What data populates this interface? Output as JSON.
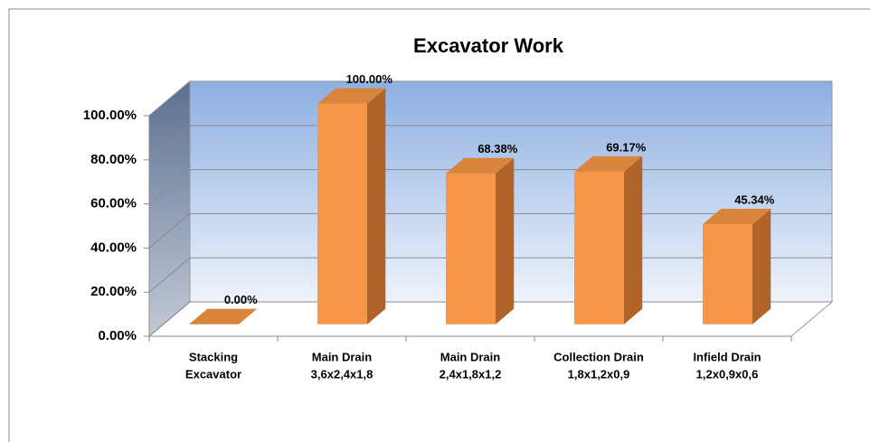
{
  "chart_data": {
    "type": "bar3d",
    "title": "Excavator Work",
    "categories": [
      [
        "Stacking",
        "Excavator"
      ],
      [
        "Main Drain",
        "3,6x2,4x1,8"
      ],
      [
        "Main Drain",
        "2,4x1,8x1,2"
      ],
      [
        "Collection Drain",
        "1,8x1,2x0,9"
      ],
      [
        "Infield Drain",
        "1,2x0,9x0,6"
      ]
    ],
    "values": [
      0,
      100,
      68.38,
      69.17,
      45.34
    ],
    "value_labels": [
      "0.00%",
      "100.00%",
      "68.38%",
      "69.17%",
      "45.34%"
    ],
    "color": "#f79646",
    "ylim": [
      0,
      100
    ],
    "yticks": [
      {
        "value": 0,
        "label": "0.00%"
      },
      {
        "value": 20,
        "label": "20.00%"
      },
      {
        "value": 40,
        "label": "40.00%"
      },
      {
        "value": 60,
        "label": "60.00%"
      },
      {
        "value": 80,
        "label": "80.00%"
      },
      {
        "value": 100,
        "label": "100.00%"
      }
    ],
    "grid": true
  }
}
